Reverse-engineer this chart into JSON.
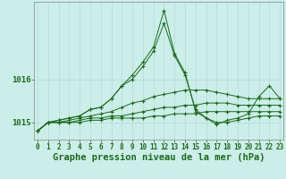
{
  "title": "Graphe pression niveau de la mer (hPa)",
  "hours": [
    0,
    1,
    2,
    3,
    4,
    5,
    6,
    7,
    8,
    9,
    10,
    11,
    12,
    13,
    14,
    15,
    16,
    17,
    18,
    19,
    20,
    21,
    22,
    23
  ],
  "line_main": [
    1014.8,
    1015.0,
    1015.05,
    1015.1,
    1015.15,
    1015.3,
    1015.35,
    1015.55,
    1015.85,
    1016.1,
    1016.4,
    1016.75,
    1017.6,
    1016.6,
    1016.15,
    1015.25,
    1015.1,
    1014.95,
    1015.05,
    1015.1,
    1015.2,
    1015.6,
    1015.85,
    1015.55
  ],
  "line2": [
    1014.8,
    1015.0,
    1015.05,
    1015.1,
    1015.15,
    1015.3,
    1015.35,
    1015.55,
    1015.85,
    1016.0,
    1016.3,
    1016.65,
    1017.3,
    1016.55,
    1016.1,
    1015.3,
    1015.1,
    1015.0,
    1015.0,
    1015.05,
    1015.1,
    1015.15,
    1015.15,
    1015.15
  ],
  "line3": [
    1014.8,
    1015.0,
    1015.0,
    1015.05,
    1015.1,
    1015.15,
    1015.2,
    1015.25,
    1015.35,
    1015.45,
    1015.5,
    1015.6,
    1015.65,
    1015.7,
    1015.75,
    1015.75,
    1015.75,
    1015.7,
    1015.65,
    1015.6,
    1015.55,
    1015.55,
    1015.55,
    1015.55
  ],
  "line4": [
    1014.8,
    1015.0,
    1015.0,
    1015.0,
    1015.05,
    1015.1,
    1015.1,
    1015.15,
    1015.15,
    1015.2,
    1015.25,
    1015.3,
    1015.35,
    1015.35,
    1015.4,
    1015.4,
    1015.45,
    1015.45,
    1015.45,
    1015.4,
    1015.4,
    1015.4,
    1015.4,
    1015.4
  ],
  "line5": [
    1014.8,
    1015.0,
    1015.0,
    1015.0,
    1015.0,
    1015.05,
    1015.05,
    1015.1,
    1015.1,
    1015.1,
    1015.1,
    1015.15,
    1015.15,
    1015.2,
    1015.2,
    1015.2,
    1015.25,
    1015.25,
    1015.25,
    1015.25,
    1015.25,
    1015.25,
    1015.25,
    1015.25
  ],
  "ylim_min": 1014.6,
  "ylim_max": 1017.8,
  "yticks": [
    1015,
    1016
  ],
  "line_color": "#1a6b1a",
  "bg_color": "#cceee8",
  "grid_color": "#b8ddd8",
  "title_fontsize": 7.5,
  "tick_fontsize": 5.5
}
